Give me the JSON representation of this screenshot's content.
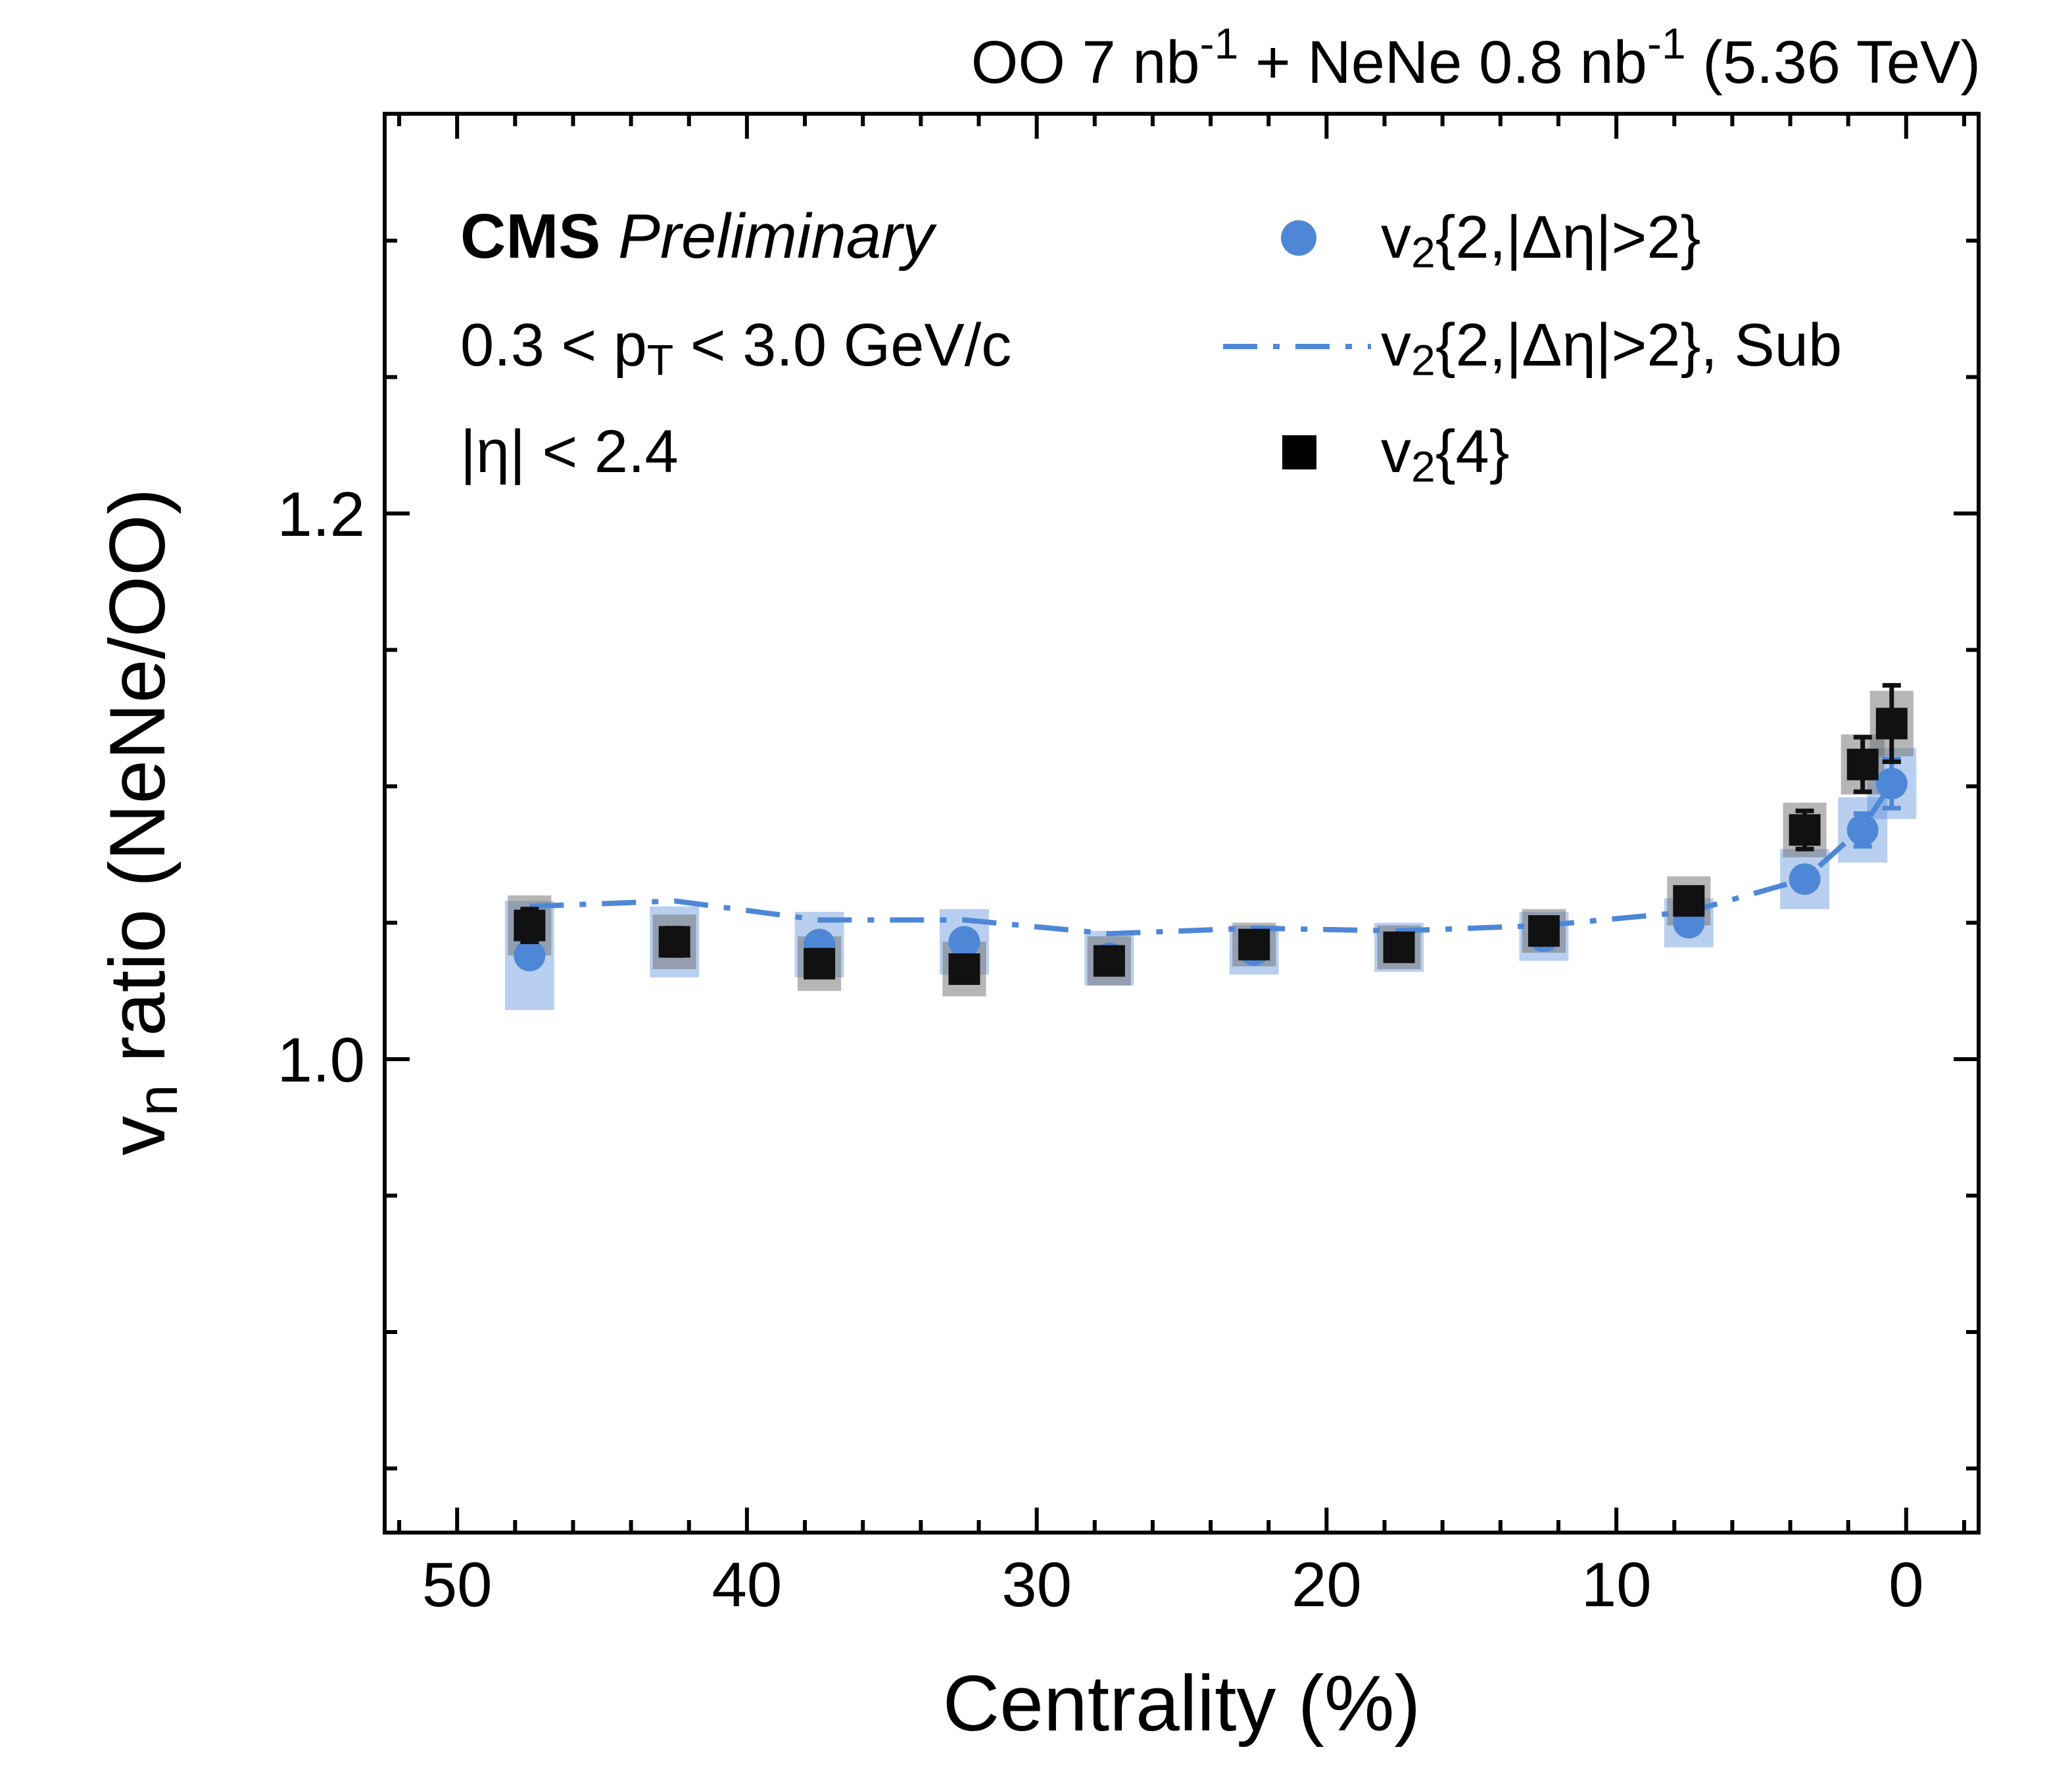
{
  "style": {
    "background": "#ffffff",
    "blue": "#4f87d7",
    "blue_box": "rgba(79,135,215,0.40)",
    "black": "#111111",
    "gray_box": "rgba(110,110,110,0.50)"
  },
  "header": {
    "title": "OO 7 nb^{-1} + NeNe 0.8 nb^{-1} (5.36 TeV)"
  },
  "labels": {
    "cms": "CMS",
    "preliminary": " Preliminary",
    "pt_range": "0.3 < p_{T} < 3.0 GeV/c",
    "eta_range": "|η| < 2.4",
    "x_axis": "Centrality (%)",
    "y_axis": "v_{n} ratio (NeNe/OO)"
  },
  "legend": {
    "position": "top-right-inside",
    "entries": [
      {
        "marker": "circle",
        "label": "v_{2}{2,|Δη|>2}"
      },
      {
        "marker": "dashdot-line",
        "label": "v_{2}{2,|Δη|>2}, Sub"
      },
      {
        "marker": "square",
        "label": "v_{2}{4}"
      }
    ]
  },
  "chart_data": {
    "type": "scatter",
    "title": "OO 7 nb⁻¹ + NeNe 0.8 nb⁻¹ (5.36 TeV)",
    "xlabel": "Centrality (%)",
    "ylabel": "vₙ ratio (NeNe/OO)",
    "x_axis_reversed": true,
    "xlim": [
      52.5,
      -2.5
    ],
    "ylim": [
      0.8265,
      1.3465
    ],
    "x_ticks": [
      50,
      40,
      30,
      20,
      10,
      0
    ],
    "x_minor_step": 2,
    "y_ticks": [
      1.0,
      1.2
    ],
    "y_minor_step": 0.05,
    "grid": false,
    "x": [
      47.5,
      42.5,
      37.5,
      32.5,
      27.5,
      22.5,
      17.5,
      12.5,
      7.5,
      3.5,
      1.5,
      0.5
    ],
    "series": [
      {
        "name": "v2{2,|Δη|>2}",
        "marker": "circle",
        "y": [
          1.038,
          1.043,
          1.042,
          1.043,
          1.037,
          1.04,
          1.041,
          1.045,
          1.05,
          1.066,
          1.084,
          1.101
        ],
        "stat_err": [
          0.004,
          0.003,
          0.003,
          0.003,
          0.002,
          0.002,
          0.002,
          0.002,
          0.003,
          0.004,
          0.006,
          0.009
        ],
        "sys_half_height": [
          0.02,
          0.013,
          0.012,
          0.012,
          0.01,
          0.009,
          0.009,
          0.009,
          0.009,
          0.011,
          0.012,
          0.013
        ],
        "sys_half_width": 0.85
      },
      {
        "name": "v2{2,|Δη|>2}, Sub",
        "marker": "dashdot-line",
        "y": [
          1.056,
          1.058,
          1.051,
          1.051,
          1.046,
          1.048,
          1.047,
          1.049,
          1.054,
          1.066,
          1.085,
          1.101
        ]
      },
      {
        "name": "v2{4}",
        "marker": "square",
        "y": [
          1.049,
          1.043,
          1.035,
          1.033,
          1.036,
          1.042,
          1.041,
          1.047,
          1.058,
          1.084,
          1.108,
          1.123
        ],
        "stat_err": [
          0.006,
          0.005,
          0.004,
          0.004,
          0.003,
          0.003,
          0.003,
          0.003,
          0.004,
          0.007,
          0.01,
          0.014
        ],
        "sys_half_height": [
          0.011,
          0.01,
          0.01,
          0.01,
          0.009,
          0.008,
          0.008,
          0.008,
          0.009,
          0.01,
          0.011,
          0.012
        ],
        "sys_half_width": 0.75
      }
    ]
  }
}
